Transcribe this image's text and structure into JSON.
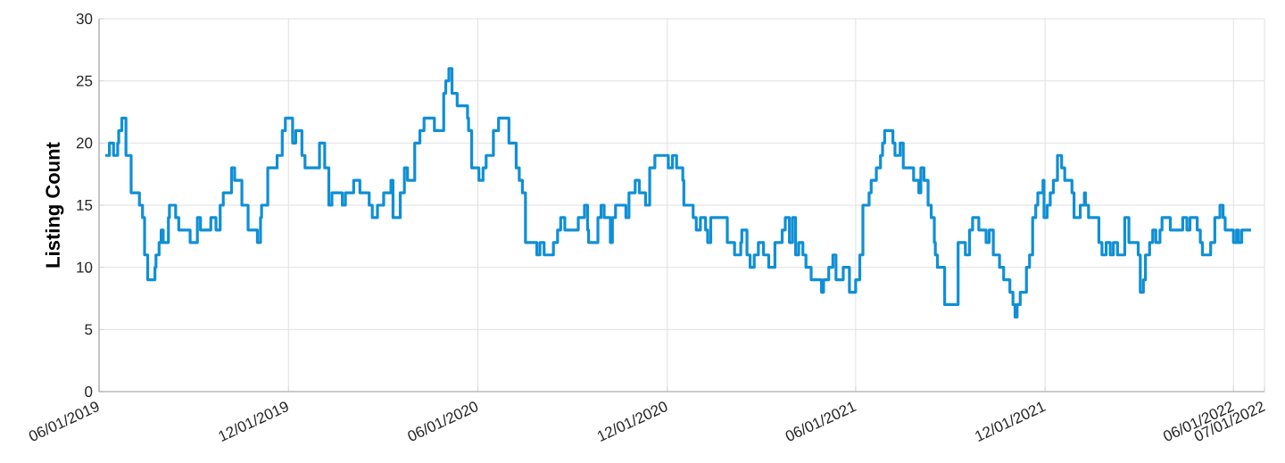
{
  "chart_data": {
    "type": "step",
    "ylabel": "Listing Count",
    "color": "#0f8fd6",
    "grid": true,
    "marker": "none",
    "line_style": "solid",
    "xlim": [
      "2019-06-01",
      "2022-07-01"
    ],
    "ylim": [
      0,
      30
    ],
    "yticks": [
      0,
      5,
      10,
      15,
      20,
      25,
      30
    ],
    "xticks": [
      {
        "value": "2019-06-01",
        "label": "06/01/2019"
      },
      {
        "value": "2019-12-01",
        "label": "12/01/2019"
      },
      {
        "value": "2020-06-01",
        "label": "06/01/2020"
      },
      {
        "value": "2020-12-01",
        "label": "12/01/2020"
      },
      {
        "value": "2021-06-01",
        "label": "06/01/2021"
      },
      {
        "value": "2021-12-01",
        "label": "12/01/2021"
      },
      {
        "value": "2022-06-01",
        "label": "06/01/2022"
      },
      {
        "value": "2022-07-01",
        "label": "07/01/2022"
      }
    ],
    "x": [
      "2019-06-07",
      "2019-06-11",
      "2019-06-15",
      "2019-06-19",
      "2019-06-20",
      "2019-06-23",
      "2019-06-27",
      "2019-07-02",
      "2019-07-10",
      "2019-07-13",
      "2019-07-15",
      "2019-07-18",
      "2019-07-25",
      "2019-07-26",
      "2019-07-29",
      "2019-07-31",
      "2019-08-02",
      "2019-08-07",
      "2019-08-08",
      "2019-08-14",
      "2019-08-17",
      "2019-08-28",
      "2019-09-04",
      "2019-09-07",
      "2019-09-17",
      "2019-09-22",
      "2019-09-26",
      "2019-09-29",
      "2019-10-07",
      "2019-10-10",
      "2019-10-17",
      "2019-10-23",
      "2019-11-01",
      "2019-11-04",
      "2019-11-05",
      "2019-11-11",
      "2019-11-20",
      "2019-11-25",
      "2019-11-28",
      "2019-12-05",
      "2019-12-08",
      "2019-12-14",
      "2019-12-17",
      "2019-12-31",
      "2020-01-05",
      "2020-01-09",
      "2020-01-12",
      "2020-01-22",
      "2020-01-25",
      "2020-02-02",
      "2020-02-08",
      "2020-02-17",
      "2020-02-20",
      "2020-02-25",
      "2020-03-02",
      "2020-03-09",
      "2020-03-11",
      "2020-03-18",
      "2020-03-22",
      "2020-03-25",
      "2020-04-01",
      "2020-04-06",
      "2020-04-10",
      "2020-04-20",
      "2020-04-29",
      "2020-05-01",
      "2020-05-04",
      "2020-05-07",
      "2020-05-12",
      "2020-05-22",
      "2020-05-23",
      "2020-05-26",
      "2020-06-02",
      "2020-06-06",
      "2020-06-09",
      "2020-06-16",
      "2020-06-21",
      "2020-07-01",
      "2020-07-08",
      "2020-07-11",
      "2020-07-14",
      "2020-07-17",
      "2020-07-28",
      "2020-07-31",
      "2020-08-04",
      "2020-08-13",
      "2020-08-17",
      "2020-08-20",
      "2020-08-24",
      "2020-09-06",
      "2020-09-12",
      "2020-09-15",
      "2020-09-16",
      "2020-09-25",
      "2020-09-28",
      "2020-10-01",
      "2020-10-07",
      "2020-10-09",
      "2020-10-12",
      "2020-10-22",
      "2020-10-25",
      "2020-10-31",
      "2020-11-04",
      "2020-11-10",
      "2020-11-14",
      "2020-11-19",
      "2020-12-02",
      "2020-12-06",
      "2020-12-10",
      "2020-12-16",
      "2020-12-17",
      "2020-12-26",
      "2020-12-29",
      "2021-01-02",
      "2021-01-07",
      "2021-01-09",
      "2021-01-12",
      "2021-01-28",
      "2021-02-04",
      "2021-02-10",
      "2021-02-11",
      "2021-02-16",
      "2021-02-19",
      "2021-02-23",
      "2021-02-27",
      "2021-03-04",
      "2021-03-09",
      "2021-03-15",
      "2021-03-22",
      "2021-03-25",
      "2021-03-29",
      "2021-04-01",
      "2021-04-04",
      "2021-04-07",
      "2021-04-11",
      "2021-04-14",
      "2021-04-19",
      "2021-04-29",
      "2021-05-01",
      "2021-05-06",
      "2021-05-10",
      "2021-05-13",
      "2021-05-20",
      "2021-05-26",
      "2021-06-01",
      "2021-06-05",
      "2021-06-08",
      "2021-06-14",
      "2021-06-16",
      "2021-06-21",
      "2021-06-25",
      "2021-06-27",
      "2021-06-29",
      "2021-07-07",
      "2021-07-09",
      "2021-07-14",
      "2021-07-17",
      "2021-07-27",
      "2021-08-01",
      "2021-08-03",
      "2021-08-06",
      "2021-08-10",
      "2021-08-13",
      "2021-08-16",
      "2021-08-17",
      "2021-08-19",
      "2021-08-26",
      "2021-09-08",
      "2021-09-15",
      "2021-09-19",
      "2021-09-22",
      "2021-09-28",
      "2021-10-05",
      "2021-10-08",
      "2021-10-12",
      "2021-10-18",
      "2021-10-22",
      "2021-10-28",
      "2021-10-31",
      "2021-11-02",
      "2021-11-04",
      "2021-11-07",
      "2021-11-13",
      "2021-11-16",
      "2021-11-19",
      "2021-11-22",
      "2021-11-24",
      "2021-11-29",
      "2021-11-30",
      "2021-12-03",
      "2021-12-06",
      "2021-12-09",
      "2021-12-13",
      "2021-12-17",
      "2021-12-20",
      "2021-12-27",
      "2021-12-29",
      "2022-01-04",
      "2022-01-08",
      "2022-01-09",
      "2022-01-12",
      "2022-01-22",
      "2022-01-25",
      "2022-01-29",
      "2022-02-02",
      "2022-02-05",
      "2022-02-09",
      "2022-02-12",
      "2022-02-16",
      "2022-02-20",
      "2022-03-01",
      "2022-03-03",
      "2022-03-06",
      "2022-03-08",
      "2022-03-12",
      "2022-03-15",
      "2022-03-18",
      "2022-03-22",
      "2022-03-24",
      "2022-04-01",
      "2022-04-13",
      "2022-04-17",
      "2022-04-20",
      "2022-04-27",
      "2022-04-30",
      "2022-05-02",
      "2022-05-10",
      "2022-05-14",
      "2022-05-19",
      "2022-05-22",
      "2022-05-24",
      "2022-06-01",
      "2022-06-04",
      "2022-06-06",
      "2022-06-09",
      "2022-06-18"
    ],
    "values": [
      19,
      20,
      19,
      20,
      21,
      22,
      19,
      16,
      15,
      14,
      11,
      9,
      10,
      11,
      12,
      13,
      12,
      14,
      15,
      14,
      13,
      12,
      14,
      13,
      14,
      13,
      15,
      16,
      18,
      17,
      15,
      13,
      12,
      14,
      15,
      18,
      19,
      21,
      22,
      20,
      21,
      19,
      18,
      20,
      18,
      15,
      16,
      15,
      16,
      17,
      16,
      15,
      14,
      15,
      16,
      17,
      14,
      16,
      18,
      17,
      20,
      21,
      22,
      21,
      24,
      25,
      26,
      24,
      23,
      22,
      21,
      18,
      17,
      18,
      19,
      21,
      22,
      20,
      18,
      17,
      16,
      12,
      11,
      12,
      11,
      12,
      13,
      14,
      13,
      14,
      15,
      13,
      12,
      14,
      15,
      14,
      12,
      14,
      15,
      14,
      16,
      17,
      16,
      15,
      18,
      19,
      18,
      19,
      18,
      17,
      15,
      14,
      13,
      14,
      13,
      12,
      14,
      12,
      11,
      12,
      13,
      11,
      10,
      11,
      12,
      11,
      10,
      12,
      13,
      14,
      12,
      14,
      11,
      12,
      11,
      10,
      9,
      8,
      9,
      10,
      11,
      9,
      10,
      8,
      9,
      11,
      15,
      16,
      17,
      18,
      19,
      20,
      21,
      20,
      19,
      20,
      18,
      17,
      16,
      18,
      17,
      15,
      14,
      12,
      11,
      10,
      7,
      12,
      11,
      13,
      14,
      13,
      12,
      13,
      11,
      10,
      9,
      8,
      7,
      6,
      7,
      8,
      10,
      11,
      14,
      15,
      16,
      17,
      14,
      15,
      16,
      17,
      19,
      18,
      17,
      16,
      14,
      15,
      16,
      15,
      14,
      12,
      11,
      12,
      11,
      12,
      11,
      11,
      14,
      12,
      11,
      8,
      9,
      11,
      12,
      13,
      12,
      13,
      14,
      13,
      14,
      13,
      14,
      13,
      12,
      11,
      12,
      14,
      15,
      14,
      13,
      12,
      13,
      12,
      13,
      13
    ]
  }
}
